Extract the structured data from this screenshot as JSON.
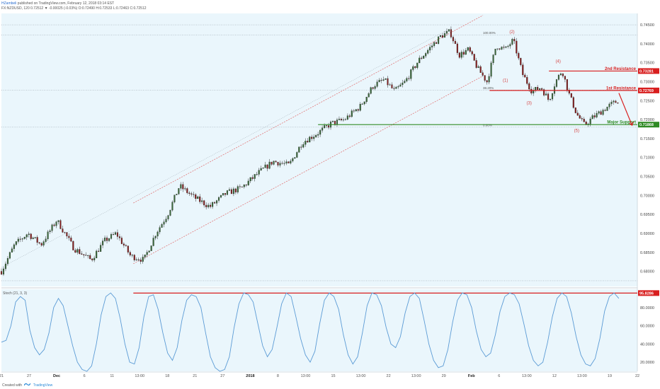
{
  "header": {
    "line1_user": "HZambeli",
    "line1_rest": "published on TradingView.com, February 12, 2018 03:14 EST",
    "line2": "FX:NZDUSD, 120  0.72512 ▼ -0.00025 (-0.03%)  O:0.72490  H:0.72533  L:0.72463  C:0.72512"
  },
  "footer": {
    "created_with": "Created with",
    "brand": "TradingView"
  },
  "colors": {
    "background": "#eaf6fc",
    "up": "#3a6b3a",
    "down": "#8a1f1f",
    "resistance": "#d81e1e",
    "support": "#2f8a24",
    "channel": "#e06a6a",
    "stoch": "#5b9bd5"
  },
  "chart_data": [
    {
      "type": "candlestick",
      "symbol": "FX:NZDUSD",
      "timeframe": "120",
      "ylim": [
        0.676,
        0.748
      ],
      "y_ticks": [
        "0.74500",
        "0.74000",
        "0.73500",
        "0.73000",
        "0.72500",
        "0.72000",
        "0.71500",
        "0.71000",
        "0.70500",
        "0.70000",
        "0.69500",
        "0.69000",
        "0.68500",
        "0.68000"
      ],
      "x_ticks": [
        "21",
        "27",
        "Dec",
        "6",
        "11",
        "13:00",
        "18",
        "21",
        "27",
        "2018",
        "8",
        "13:00",
        "15",
        "13:00",
        "22",
        "13:00",
        "29",
        "Feb",
        "6",
        "13:00",
        "12",
        "13:00",
        "19",
        "22"
      ],
      "price_path": [
        {
          "t": 0,
          "p": 0.68
        },
        {
          "t": 10,
          "p": 0.687
        },
        {
          "t": 20,
          "p": 0.69
        },
        {
          "t": 30,
          "p": 0.687
        },
        {
          "t": 42,
          "p": 0.6935
        },
        {
          "t": 55,
          "p": 0.686
        },
        {
          "t": 68,
          "p": 0.683
        },
        {
          "t": 78,
          "p": 0.688
        },
        {
          "t": 87,
          "p": 0.69
        },
        {
          "t": 98,
          "p": 0.684
        },
        {
          "t": 108,
          "p": 0.683
        },
        {
          "t": 117,
          "p": 0.69
        },
        {
          "t": 126,
          "p": 0.695
        },
        {
          "t": 135,
          "p": 0.7025
        },
        {
          "t": 146,
          "p": 0.6995
        },
        {
          "t": 158,
          "p": 0.697
        },
        {
          "t": 170,
          "p": 0.7005
        },
        {
          "t": 182,
          "p": 0.702
        },
        {
          "t": 195,
          "p": 0.706
        },
        {
          "t": 206,
          "p": 0.709
        },
        {
          "t": 218,
          "p": 0.708
        },
        {
          "t": 228,
          "p": 0.714
        },
        {
          "t": 240,
          "p": 0.7165
        },
        {
          "t": 250,
          "p": 0.719
        },
        {
          "t": 260,
          "p": 0.72
        },
        {
          "t": 272,
          "p": 0.7235
        },
        {
          "t": 282,
          "p": 0.729
        },
        {
          "t": 290,
          "p": 0.7305
        },
        {
          "t": 298,
          "p": 0.7275
        },
        {
          "t": 306,
          "p": 0.73
        },
        {
          "t": 316,
          "p": 0.7355
        },
        {
          "t": 325,
          "p": 0.739
        },
        {
          "t": 333,
          "p": 0.742
        },
        {
          "t": 340,
          "p": 0.7432
        },
        {
          "t": 347,
          "p": 0.737
        },
        {
          "t": 354,
          "p": 0.7385
        },
        {
          "t": 361,
          "p": 0.7335
        },
        {
          "t": 368,
          "p": 0.73
        },
        {
          "t": 375,
          "p": 0.7395
        },
        {
          "t": 382,
          "p": 0.7385
        },
        {
          "t": 388,
          "p": 0.741
        },
        {
          "t": 395,
          "p": 0.732
        },
        {
          "t": 402,
          "p": 0.7275
        },
        {
          "t": 409,
          "p": 0.7285
        },
        {
          "t": 415,
          "p": 0.725
        },
        {
          "t": 420,
          "p": 0.73
        },
        {
          "t": 425,
          "p": 0.733
        },
        {
          "t": 430,
          "p": 0.727
        },
        {
          "t": 436,
          "p": 0.7215
        },
        {
          "t": 442,
          "p": 0.7185
        },
        {
          "t": 448,
          "p": 0.7205
        },
        {
          "t": 456,
          "p": 0.7225
        },
        {
          "t": 462,
          "p": 0.724
        },
        {
          "t": 468,
          "p": 0.7251
        }
      ],
      "channel": {
        "upper_start": {
          "t": 100,
          "p": 0.698
        },
        "upper_end": {
          "t": 365,
          "p": 0.7475
        },
        "lower_start": {
          "t": 100,
          "p": 0.682
        },
        "lower_end": {
          "t": 365,
          "p": 0.7315
        },
        "outer_start": {
          "t": 0,
          "p": 0.681
        },
        "outer_end": {
          "t": 340,
          "p": 0.744
        }
      },
      "levels": [
        {
          "label": "2nd Resistance",
          "price": "0.73281",
          "value": 0.73281,
          "from_t": 415,
          "kind": "resistance"
        },
        {
          "label": "1st Resistance",
          "price": "0.72769",
          "value": 0.72769,
          "from_t": 370,
          "kind": "resistance"
        },
        {
          "label": "Major Support",
          "price": "0.71868",
          "value": 0.71868,
          "from_t": 240,
          "kind": "support"
        }
      ],
      "fib_levels": [
        {
          "label": "100.00%",
          "value": 0.7423,
          "from_t": 365
        },
        {
          "label": "38.20%",
          "value": 0.7278,
          "from_t": 365
        },
        {
          "label": "0.00%",
          "value": 0.718,
          "from_t": 365
        }
      ],
      "wave_labels": [
        {
          "label": "(1)",
          "t": 382,
          "p": 0.73
        },
        {
          "label": "(2)",
          "t": 387,
          "p": 0.7428
        },
        {
          "label": "(3)",
          "t": 400,
          "p": 0.724
        },
        {
          "label": "(4)",
          "t": 422,
          "p": 0.735
        },
        {
          "label": "(5)",
          "t": 436,
          "p": 0.7168
        }
      ],
      "arrow": {
        "from": {
          "t": 468,
          "p": 0.727
        },
        "to": {
          "t": 478,
          "p": 0.7185
        }
      }
    },
    {
      "type": "line",
      "title": "Stoch (21, 3, 3)",
      "ylim": [
        10,
        100
      ],
      "y_ticks": [
        "80.0000",
        "60.0000",
        "40.0000",
        "20.0000"
      ],
      "level": {
        "label": "95.8286",
        "value": 95.8286
      },
      "values": [
        42,
        44,
        60,
        86,
        92,
        88,
        55,
        36,
        28,
        34,
        52,
        80,
        90,
        82,
        60,
        38,
        20,
        12,
        10,
        16,
        40,
        72,
        92,
        96,
        90,
        68,
        40,
        20,
        18,
        36,
        70,
        92,
        94,
        78,
        52,
        30,
        22,
        36,
        66,
        88,
        94,
        92,
        80,
        52,
        26,
        14,
        10,
        12,
        26,
        58,
        84,
        96,
        94,
        86,
        62,
        38,
        26,
        34,
        58,
        84,
        96,
        92,
        70,
        46,
        28,
        20,
        32,
        62,
        88,
        96,
        92,
        78,
        50,
        28,
        18,
        26,
        52,
        82,
        96,
        94,
        82,
        58,
        40,
        36,
        48,
        74,
        92,
        96,
        90,
        66,
        40,
        22,
        14,
        16,
        34,
        64,
        88,
        96,
        94,
        80,
        54,
        34,
        26,
        30,
        50,
        76,
        92,
        96,
        94,
        84,
        62,
        38,
        22,
        16,
        20,
        42,
        70,
        90,
        96,
        92,
        74,
        48,
        28,
        18,
        16,
        24,
        46,
        76,
        92,
        96,
        90
      ]
    }
  ]
}
